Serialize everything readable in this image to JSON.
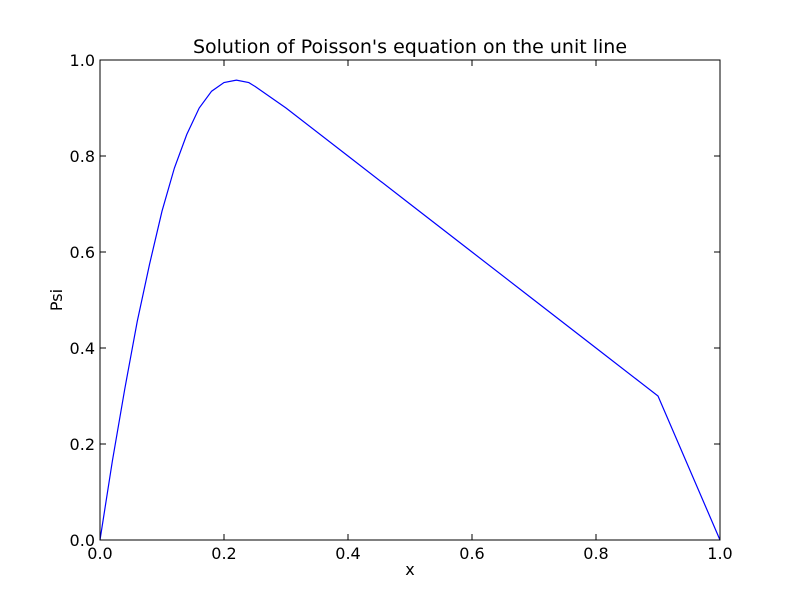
{
  "chart_data": {
    "type": "line",
    "title": "Solution of Poisson's equation on the unit line",
    "xlabel": "x",
    "ylabel": "Psi",
    "xlim": [
      0.0,
      1.0
    ],
    "ylim": [
      0.0,
      1.0
    ],
    "xticks": [
      "0.0",
      "0.2",
      "0.4",
      "0.6",
      "0.8",
      "1.0"
    ],
    "yticks": [
      "0.0",
      "0.2",
      "0.4",
      "0.6",
      "0.8",
      "1.0"
    ],
    "grid": false,
    "legend": "none",
    "series": [
      {
        "color": "#0000ff",
        "x": [
          0.0,
          0.02,
          0.04,
          0.06,
          0.08,
          0.1,
          0.12,
          0.14,
          0.16,
          0.18,
          0.2,
          0.22,
          0.24,
          0.25,
          0.3,
          0.4,
          0.5,
          0.6,
          0.7,
          0.8,
          0.9,
          1.0
        ],
        "y": [
          0.0,
          0.165,
          0.315,
          0.455,
          0.575,
          0.685,
          0.775,
          0.845,
          0.9,
          0.935,
          0.953,
          0.958,
          0.953,
          0.945,
          0.9,
          0.8,
          0.7,
          0.6,
          0.5,
          0.4,
          0.3,
          0.0
        ]
      }
    ]
  }
}
